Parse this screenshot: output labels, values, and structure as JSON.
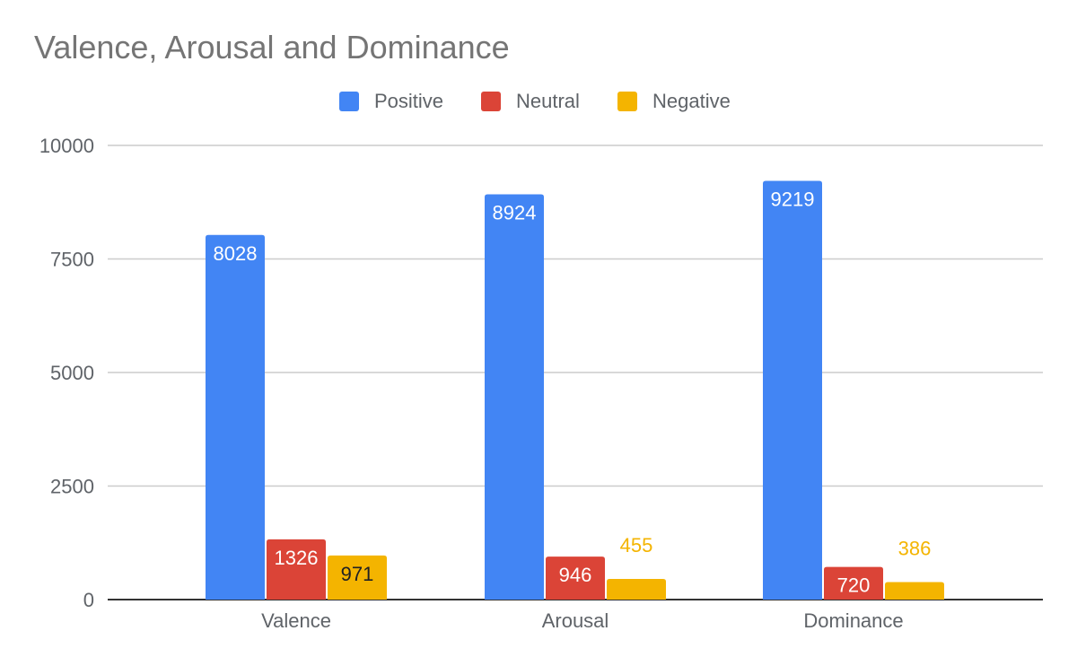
{
  "chart_data": {
    "type": "bar",
    "title": "Valence, Arousal and Dominance",
    "xlabel": "",
    "ylabel": "",
    "categories": [
      "Valence",
      "Arousal",
      "Dominance"
    ],
    "series": [
      {
        "name": "Positive",
        "color": "#4285f4",
        "values": [
          8028,
          8924,
          9219
        ],
        "label_color": "#ffffff",
        "label_inside": [
          true,
          true,
          true
        ]
      },
      {
        "name": "Neutral",
        "color": "#db4437",
        "values": [
          1326,
          946,
          720
        ],
        "label_color": "#ffffff",
        "label_inside": [
          true,
          true,
          true
        ]
      },
      {
        "name": "Negative",
        "color": "#f4b400",
        "values": [
          971,
          455,
          386
        ],
        "label_color": "#f4b400",
        "label_inside": [
          true,
          false,
          false
        ]
      }
    ],
    "y_ticks": [
      0,
      2500,
      5000,
      7500,
      10000
    ],
    "ylim": [
      0,
      10000
    ],
    "grid": true,
    "legend": "top-center"
  }
}
